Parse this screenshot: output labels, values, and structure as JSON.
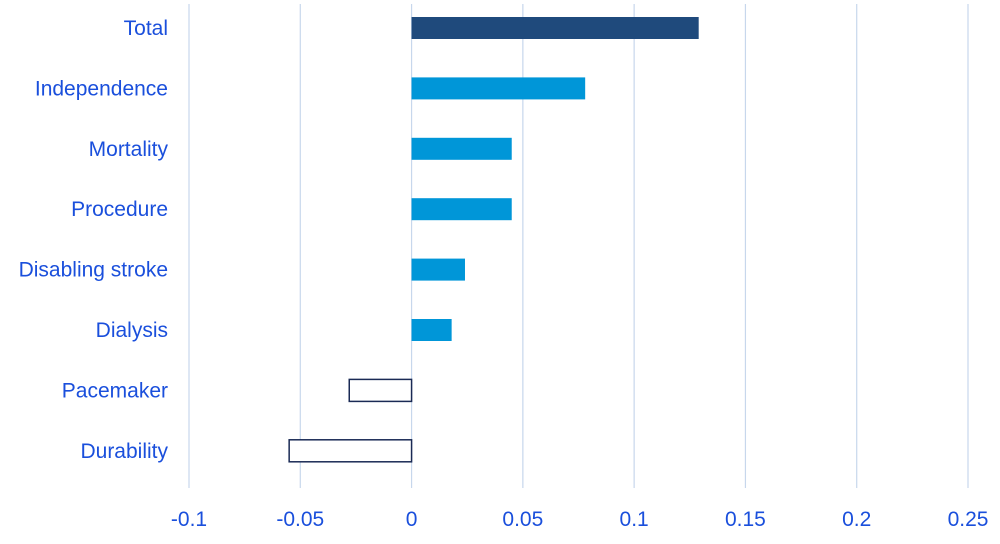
{
  "chart_data": {
    "type": "bar",
    "orientation": "horizontal",
    "title": "",
    "xlabel": "",
    "ylabel": "",
    "categories": [
      "Total",
      "Independence",
      "Mortality",
      "Procedure",
      "Disabling stroke",
      "Dialysis",
      "Pacemaker",
      "Durability"
    ],
    "values": [
      0.129,
      0.078,
      0.045,
      0.045,
      0.024,
      0.018,
      -0.028,
      -0.055
    ],
    "bar_styles": [
      "dark",
      "light",
      "light",
      "light",
      "light",
      "light",
      "outline",
      "outline"
    ],
    "xlim": [
      -0.1,
      0.25
    ],
    "xticks": [
      -0.1,
      -0.05,
      0,
      0.05,
      0.1,
      0.15,
      0.2,
      0.25
    ],
    "xtick_labels": [
      "-0.1",
      "-0.05",
      "0",
      "0.05",
      "0.1",
      "0.15",
      "0.2",
      "0.25"
    ],
    "grid": "vertical",
    "legend": "none"
  },
  "colors": {
    "dark_bar": "#1f4a7c",
    "light_bar": "#0096d8",
    "outline_bar": "#1a2a55",
    "grid": "#c7d7ec",
    "text": "#1a4fdc"
  }
}
